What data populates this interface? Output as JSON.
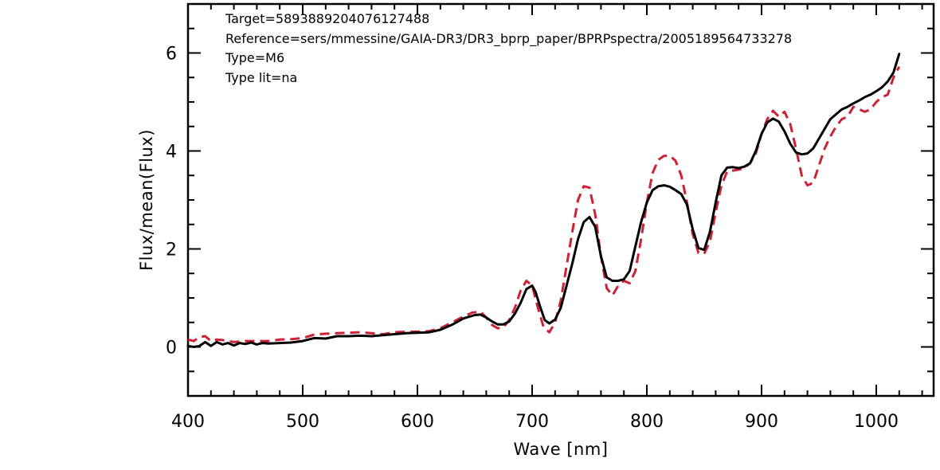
{
  "chart_data": {
    "type": "line",
    "title": "",
    "xlabel": "Wave [nm]",
    "ylabel": "Flux/mean(Flux)",
    "xlim": [
      400,
      1050
    ],
    "ylim": [
      -1,
      7
    ],
    "grid": false,
    "x_ticks": [
      400,
      500,
      600,
      700,
      800,
      900,
      1000
    ],
    "x_tick_labels": [
      "400",
      "500",
      "600",
      "700",
      "800",
      "900",
      "1000"
    ],
    "y_ticks": [
      0,
      2,
      4,
      6
    ],
    "y_tick_labels": [
      "0",
      "2",
      "4",
      "6"
    ],
    "annotations": [
      "Target=5893889204076127488",
      "Reference=sers/mmessine/GAIA-DR3/DR3_bprp_paper/BPRPspectra/2005189564733278",
      "Type=M6",
      "Type lit=na"
    ],
    "series": [
      {
        "color": "#000000",
        "style": "solid",
        "points": [
          [
            400,
            0.02
          ],
          [
            405,
            0.0
          ],
          [
            410,
            0.02
          ],
          [
            415,
            0.1
          ],
          [
            420,
            0.02
          ],
          [
            425,
            0.1
          ],
          [
            430,
            0.05
          ],
          [
            435,
            0.08
          ],
          [
            440,
            0.03
          ],
          [
            445,
            0.08
          ],
          [
            450,
            0.06
          ],
          [
            455,
            0.09
          ],
          [
            460,
            0.05
          ],
          [
            465,
            0.08
          ],
          [
            470,
            0.07
          ],
          [
            480,
            0.08
          ],
          [
            490,
            0.09
          ],
          [
            500,
            0.12
          ],
          [
            510,
            0.18
          ],
          [
            520,
            0.17
          ],
          [
            530,
            0.22
          ],
          [
            540,
            0.22
          ],
          [
            550,
            0.23
          ],
          [
            560,
            0.22
          ],
          [
            570,
            0.24
          ],
          [
            580,
            0.26
          ],
          [
            590,
            0.28
          ],
          [
            600,
            0.29
          ],
          [
            610,
            0.3
          ],
          [
            620,
            0.35
          ],
          [
            630,
            0.45
          ],
          [
            640,
            0.58
          ],
          [
            650,
            0.65
          ],
          [
            655,
            0.66
          ],
          [
            660,
            0.6
          ],
          [
            665,
            0.52
          ],
          [
            670,
            0.46
          ],
          [
            675,
            0.46
          ],
          [
            680,
            0.52
          ],
          [
            685,
            0.68
          ],
          [
            690,
            0.9
          ],
          [
            695,
            1.18
          ],
          [
            700,
            1.25
          ],
          [
            703,
            1.12
          ],
          [
            707,
            0.82
          ],
          [
            711,
            0.55
          ],
          [
            715,
            0.48
          ],
          [
            720,
            0.56
          ],
          [
            725,
            0.8
          ],
          [
            730,
            1.25
          ],
          [
            735,
            1.7
          ],
          [
            740,
            2.2
          ],
          [
            745,
            2.55
          ],
          [
            750,
            2.65
          ],
          [
            755,
            2.45
          ],
          [
            760,
            1.85
          ],
          [
            765,
            1.42
          ],
          [
            770,
            1.35
          ],
          [
            775,
            1.35
          ],
          [
            780,
            1.38
          ],
          [
            785,
            1.55
          ],
          [
            790,
            2.05
          ],
          [
            795,
            2.55
          ],
          [
            800,
            2.95
          ],
          [
            805,
            3.2
          ],
          [
            810,
            3.28
          ],
          [
            815,
            3.3
          ],
          [
            820,
            3.27
          ],
          [
            825,
            3.2
          ],
          [
            830,
            3.12
          ],
          [
            835,
            2.9
          ],
          [
            840,
            2.4
          ],
          [
            845,
            2.02
          ],
          [
            850,
            1.98
          ],
          [
            855,
            2.35
          ],
          [
            860,
            2.95
          ],
          [
            865,
            3.5
          ],
          [
            870,
            3.66
          ],
          [
            875,
            3.67
          ],
          [
            880,
            3.65
          ],
          [
            885,
            3.68
          ],
          [
            890,
            3.75
          ],
          [
            895,
            4.0
          ],
          [
            900,
            4.35
          ],
          [
            905,
            4.58
          ],
          [
            910,
            4.66
          ],
          [
            915,
            4.6
          ],
          [
            920,
            4.4
          ],
          [
            925,
            4.15
          ],
          [
            930,
            3.97
          ],
          [
            935,
            3.93
          ],
          [
            940,
            3.95
          ],
          [
            945,
            4.05
          ],
          [
            950,
            4.25
          ],
          [
            955,
            4.45
          ],
          [
            960,
            4.65
          ],
          [
            965,
            4.75
          ],
          [
            970,
            4.85
          ],
          [
            975,
            4.9
          ],
          [
            980,
            4.97
          ],
          [
            985,
            5.03
          ],
          [
            990,
            5.1
          ],
          [
            995,
            5.15
          ],
          [
            1000,
            5.22
          ],
          [
            1005,
            5.3
          ],
          [
            1010,
            5.42
          ],
          [
            1015,
            5.6
          ],
          [
            1020,
            5.98
          ]
        ]
      },
      {
        "color": "#cc2233",
        "style": "dashed",
        "points": [
          [
            400,
            0.15
          ],
          [
            405,
            0.12
          ],
          [
            410,
            0.2
          ],
          [
            415,
            0.22
          ],
          [
            420,
            0.12
          ],
          [
            425,
            0.15
          ],
          [
            430,
            0.14
          ],
          [
            440,
            0.1
          ],
          [
            450,
            0.12
          ],
          [
            460,
            0.12
          ],
          [
            470,
            0.12
          ],
          [
            480,
            0.15
          ],
          [
            490,
            0.16
          ],
          [
            500,
            0.18
          ],
          [
            510,
            0.25
          ],
          [
            520,
            0.27
          ],
          [
            530,
            0.28
          ],
          [
            540,
            0.29
          ],
          [
            550,
            0.3
          ],
          [
            560,
            0.28
          ],
          [
            570,
            0.26
          ],
          [
            580,
            0.3
          ],
          [
            590,
            0.31
          ],
          [
            600,
            0.31
          ],
          [
            610,
            0.32
          ],
          [
            620,
            0.38
          ],
          [
            630,
            0.5
          ],
          [
            640,
            0.62
          ],
          [
            648,
            0.7
          ],
          [
            655,
            0.72
          ],
          [
            660,
            0.6
          ],
          [
            665,
            0.45
          ],
          [
            670,
            0.38
          ],
          [
            675,
            0.4
          ],
          [
            680,
            0.55
          ],
          [
            685,
            0.8
          ],
          [
            690,
            1.15
          ],
          [
            695,
            1.35
          ],
          [
            700,
            1.25
          ],
          [
            705,
            0.8
          ],
          [
            710,
            0.4
          ],
          [
            715,
            0.3
          ],
          [
            720,
            0.5
          ],
          [
            725,
            0.95
          ],
          [
            730,
            1.65
          ],
          [
            735,
            2.35
          ],
          [
            740,
            3.0
          ],
          [
            745,
            3.28
          ],
          [
            750,
            3.25
          ],
          [
            755,
            2.7
          ],
          [
            760,
            1.85
          ],
          [
            765,
            1.2
          ],
          [
            770,
            1.05
          ],
          [
            775,
            1.25
          ],
          [
            780,
            1.35
          ],
          [
            785,
            1.3
          ],
          [
            790,
            1.55
          ],
          [
            795,
            2.2
          ],
          [
            800,
            2.95
          ],
          [
            805,
            3.55
          ],
          [
            810,
            3.82
          ],
          [
            815,
            3.9
          ],
          [
            820,
            3.9
          ],
          [
            825,
            3.8
          ],
          [
            830,
            3.5
          ],
          [
            835,
            2.95
          ],
          [
            840,
            2.3
          ],
          [
            845,
            1.92
          ],
          [
            850,
            1.9
          ],
          [
            855,
            2.15
          ],
          [
            860,
            2.75
          ],
          [
            865,
            3.3
          ],
          [
            870,
            3.58
          ],
          [
            875,
            3.6
          ],
          [
            880,
            3.62
          ],
          [
            885,
            3.65
          ],
          [
            890,
            3.75
          ],
          [
            895,
            3.95
          ],
          [
            900,
            4.35
          ],
          [
            905,
            4.65
          ],
          [
            910,
            4.82
          ],
          [
            915,
            4.7
          ],
          [
            920,
            4.8
          ],
          [
            925,
            4.55
          ],
          [
            930,
            4.05
          ],
          [
            935,
            3.5
          ],
          [
            940,
            3.3
          ],
          [
            945,
            3.35
          ],
          [
            950,
            3.7
          ],
          [
            955,
            4.05
          ],
          [
            960,
            4.3
          ],
          [
            965,
            4.5
          ],
          [
            970,
            4.65
          ],
          [
            975,
            4.7
          ],
          [
            980,
            4.9
          ],
          [
            985,
            4.85
          ],
          [
            990,
            4.8
          ],
          [
            995,
            4.85
          ],
          [
            1000,
            5.0
          ],
          [
            1005,
            5.1
          ],
          [
            1010,
            5.15
          ],
          [
            1015,
            5.5
          ],
          [
            1020,
            5.72
          ]
        ]
      }
    ]
  }
}
